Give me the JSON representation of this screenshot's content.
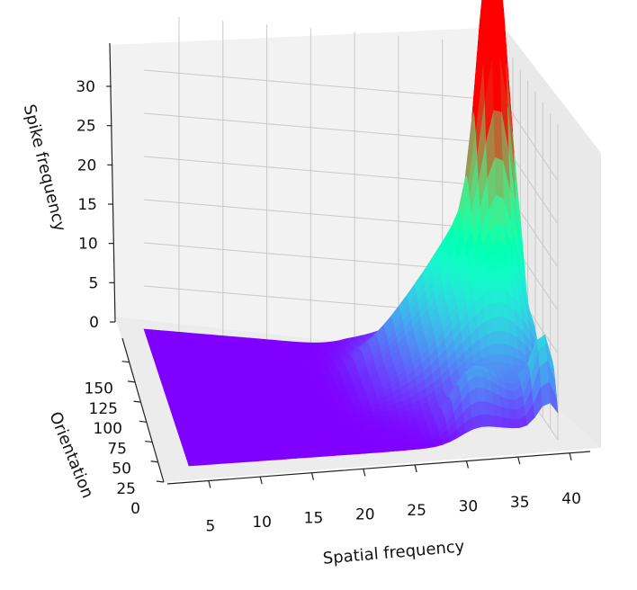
{
  "chart_data": {
    "type": "surface3d",
    "title": "",
    "xlabel": "Spatial frequency",
    "ylabel": "Orientation",
    "zlabel": "Spike frequency",
    "x_ticks": [
      5,
      10,
      15,
      20,
      25,
      30,
      35,
      40
    ],
    "y_ticks": [
      0,
      25,
      50,
      75,
      100,
      125,
      150
    ],
    "z_ticks": [
      0,
      5,
      10,
      15,
      20,
      25,
      30
    ],
    "xlim": [
      1,
      42
    ],
    "ylim": [
      0,
      180
    ],
    "zlim": [
      0,
      34
    ],
    "colormap": "rainbow",
    "grid": true,
    "surface_peaks": [
      {
        "spatial_frequency": 39,
        "orientation": 135,
        "spike_frequency": 34
      },
      {
        "spatial_frequency": 40,
        "orientation": 90,
        "spike_frequency": 12
      },
      {
        "spatial_frequency": 41,
        "orientation": 10,
        "spike_frequency": 8
      },
      {
        "spatial_frequency": 33,
        "orientation": 20,
        "spike_frequency": 4
      }
    ]
  }
}
